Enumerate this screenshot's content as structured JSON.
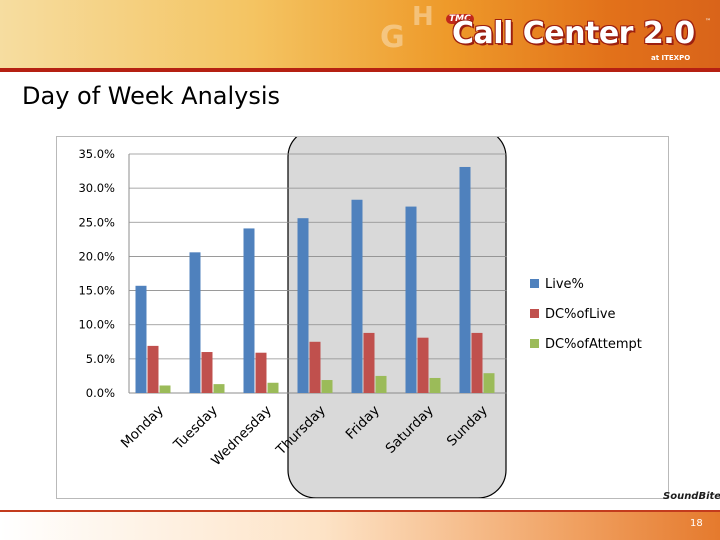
{
  "header": {
    "brand_small": "TMC",
    "brand_title": "Call Center 2.0",
    "brand_tm": "™",
    "brand_sub": "at ITEXPO"
  },
  "slide": {
    "title": "Day of Week Analysis",
    "page_number": "18",
    "logo_text": "SoundBite"
  },
  "colors": {
    "live": "#4f81bd",
    "dc_live": "#c0504d",
    "dc_attempt": "#9bbb59",
    "highlight_fill": "#d9d9d9",
    "highlight_stroke": "#000000"
  },
  "chart_data": {
    "type": "bar",
    "title": "",
    "xlabel": "",
    "ylabel": "",
    "categories": [
      "Monday",
      "Tuesday",
      "Wednesday",
      "Thursday",
      "Friday",
      "Saturday",
      "Sunday"
    ],
    "series": [
      {
        "name": "Live%",
        "values": [
          15.7,
          20.6,
          24.1,
          25.6,
          28.3,
          27.3,
          33.1
        ]
      },
      {
        "name": "DC%ofLive",
        "values": [
          6.9,
          6.0,
          5.9,
          7.5,
          8.8,
          8.1,
          8.8
        ]
      },
      {
        "name": "DC%ofAttempt",
        "values": [
          1.1,
          1.3,
          1.5,
          1.9,
          2.5,
          2.2,
          2.9
        ]
      }
    ],
    "ylim": [
      0,
      35
    ],
    "yticks": [
      "0.0%",
      "5.0%",
      "10.0%",
      "15.0%",
      "20.0%",
      "25.0%",
      "30.0%",
      "35.0%"
    ],
    "grid": true,
    "legend": "right",
    "highlighted_categories": [
      "Thursday",
      "Friday",
      "Saturday",
      "Sunday"
    ]
  }
}
